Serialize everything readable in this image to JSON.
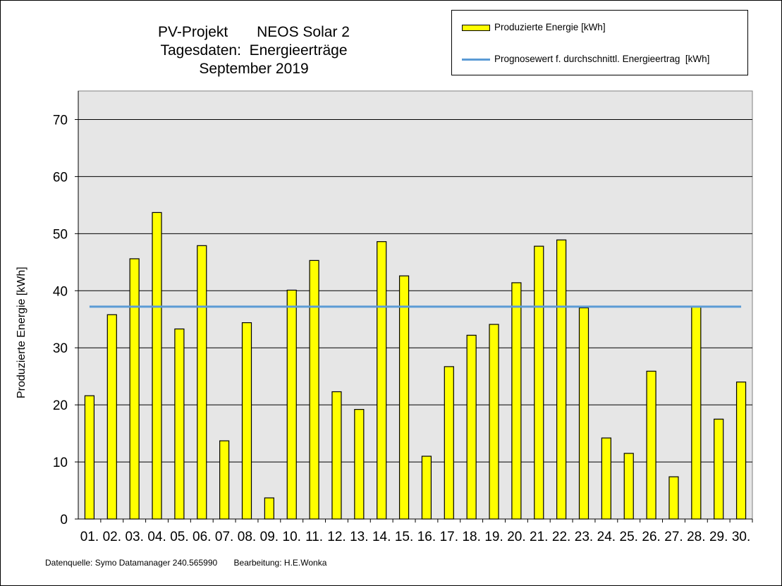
{
  "title_lines": [
    "PV-Projekt       NEOS Solar 2",
    "Tagesdaten:  Energieerträge",
    "September 2019"
  ],
  "legend": {
    "bar_label": "Produzierte Energie [kWh]",
    "line_label": "Prognosewert f. durchschnittl. Energieertrag  [kWh]"
  },
  "footer": {
    "source": "Datenquelle: Symo Datamanager 240.565990",
    "editor": "Bearbeitung: H.E.Wonka"
  },
  "colors": {
    "bar": "#ffff00",
    "line": "#5b9bd5",
    "plot_bg": "#e6e6e6"
  },
  "chart_data": {
    "type": "bar",
    "title": "PV-Projekt NEOS Solar 2 Tagesdaten: Energieerträge September 2019",
    "ylabel": "Produzierte Energie [kWh]",
    "xlabel": "",
    "ylim": [
      0,
      75
    ],
    "yticks": [
      0,
      10,
      20,
      30,
      40,
      50,
      60,
      70
    ],
    "grid": true,
    "legend_position": "top-right",
    "categories": [
      "01.",
      "02.",
      "03.",
      "04.",
      "05.",
      "06.",
      "07.",
      "08.",
      "09.",
      "10.",
      "11.",
      "12.",
      "13.",
      "14.",
      "15.",
      "16.",
      "17.",
      "18.",
      "19.",
      "20.",
      "21.",
      "22.",
      "23.",
      "24.",
      "25.",
      "26.",
      "27.",
      "28.",
      "29.",
      "30."
    ],
    "series": [
      {
        "name": "Produzierte Energie [kWh]",
        "type": "bar",
        "values": [
          21.6,
          35.8,
          45.6,
          53.7,
          33.3,
          47.9,
          13.7,
          34.4,
          3.7,
          40.1,
          45.3,
          22.3,
          19.2,
          48.6,
          42.6,
          11.0,
          26.7,
          32.2,
          34.1,
          41.4,
          47.8,
          48.9,
          37.0,
          14.2,
          11.5,
          25.9,
          7.4,
          37.3,
          17.5,
          24.0
        ]
      },
      {
        "name": "Prognosewert f. durchschnittl. Energieertrag  [kWh]",
        "type": "line",
        "value": 37.2
      }
    ]
  }
}
